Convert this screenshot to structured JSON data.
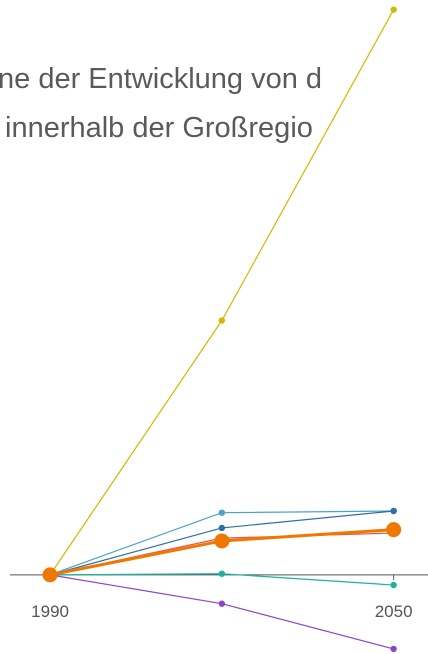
{
  "chart_data": {
    "type": "line",
    "title_lines": [
      "ne der Entwicklung von d",
      "innerhalb der Großregio"
    ],
    "x": [
      1990,
      2020,
      2050
    ],
    "xlim": [
      1983,
      2056
    ],
    "xticks": [
      1990,
      2050
    ],
    "ylim": [
      -14,
      101
    ],
    "series": [
      {
        "color": "#d4b800",
        "values": [
          0,
          45,
          100
        ]
      },
      {
        "color": "#4aa3c9",
        "values": [
          0,
          11,
          11.3
        ]
      },
      {
        "color": "#2e6fa7",
        "values": [
          0,
          8.3,
          11.3
        ]
      },
      {
        "color": "#e8574e",
        "values": [
          0,
          6.5,
          7.4
        ]
      },
      {
        "color": "#1bb39b",
        "values": [
          0,
          0.2,
          -1.8
        ]
      },
      {
        "color": "#8c45c8",
        "values": [
          0,
          -5.1,
          -13.1
        ]
      },
      {
        "color": "#f07800",
        "values": [
          0,
          6.0,
          8.0
        ],
        "highlighted": true
      }
    ]
  }
}
